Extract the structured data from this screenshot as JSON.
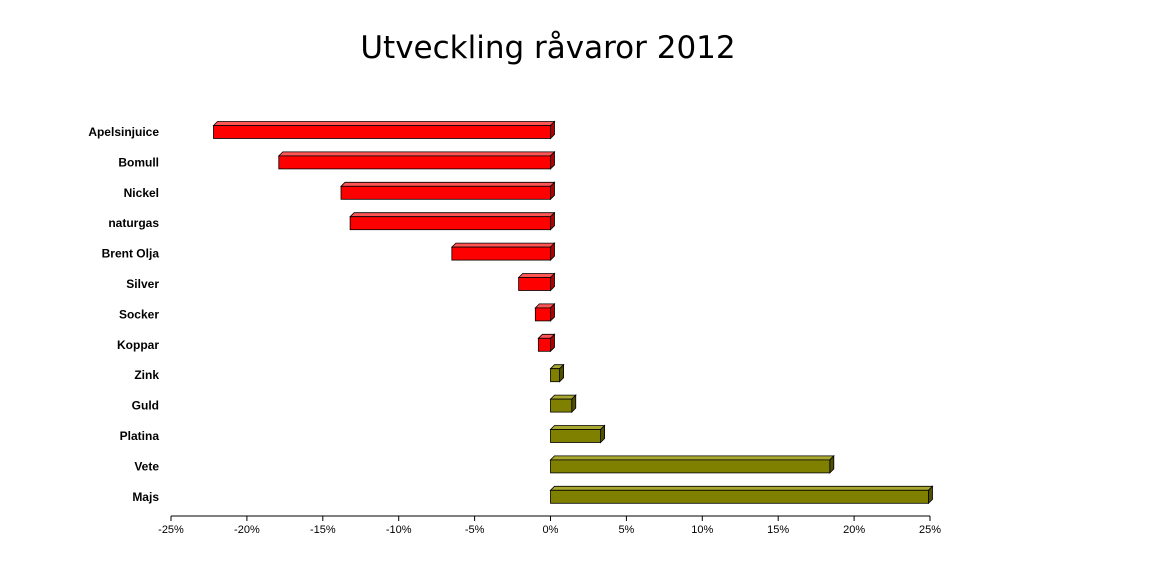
{
  "chart_data": {
    "type": "bar",
    "orientation": "horizontal",
    "title": "Utveckling råvaror 2012",
    "xlabel": "",
    "ylabel": "",
    "categories": [
      "Apelsinjuice",
      "Bomull",
      "Nickel",
      "naturgas",
      "Brent Olja",
      "Silver",
      "Socker",
      "Koppar",
      "Zink",
      "Guld",
      "Platina",
      "Vete",
      "Majs"
    ],
    "values": [
      -22.2,
      -17.9,
      -13.8,
      -13.2,
      -6.5,
      -2.1,
      -1.0,
      -0.8,
      0.6,
      1.4,
      3.3,
      18.4,
      24.9
    ],
    "xlim": [
      -25,
      25
    ],
    "xticks": [
      -25,
      -20,
      -15,
      -10,
      -5,
      0,
      5,
      10,
      15,
      20,
      25
    ],
    "xtick_labels": [
      "-25%",
      "-20%",
      "-15%",
      "-10%",
      "-5%",
      "0%",
      "5%",
      "10%",
      "15%",
      "20%",
      "25%"
    ],
    "grid": false,
    "legend": "none",
    "colors": {
      "negative": "#ff0000",
      "negative_side": "#b00000",
      "negative_top": "#ff5555",
      "positive": "#808000",
      "positive_side": "#505000",
      "positive_top": "#a8a830",
      "outline": "#000000"
    }
  }
}
